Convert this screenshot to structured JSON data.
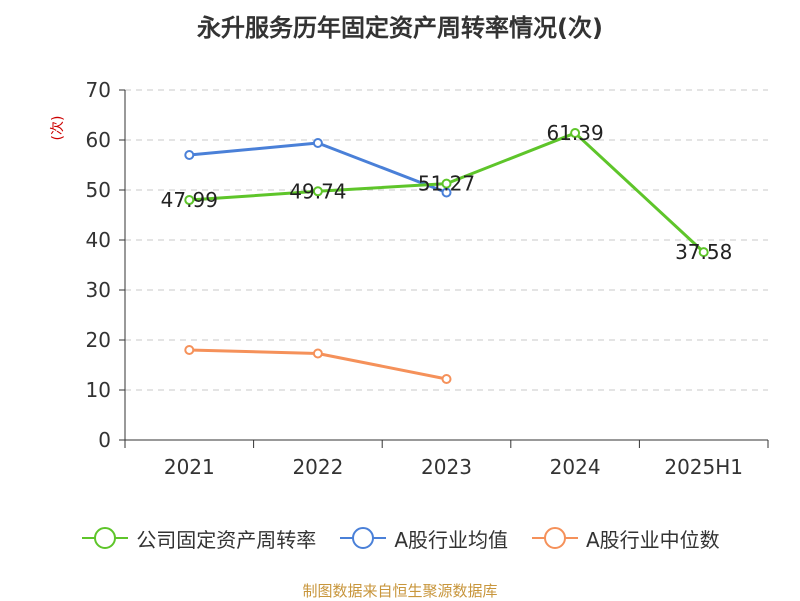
{
  "chart_data": {
    "type": "line",
    "title": "永升服务历年固定资产周转率情况(次)",
    "ylabel": "(次)",
    "xlabel": "",
    "categories": [
      "2021",
      "2022",
      "2023",
      "2024",
      "2025H1"
    ],
    "ylim": [
      0,
      70
    ],
    "yticks": [
      0,
      10,
      20,
      30,
      40,
      50,
      60,
      70
    ],
    "grid": true,
    "legend_position": "bottom",
    "series": [
      {
        "name": "公司固定资产周转率",
        "values": [
          47.99,
          49.74,
          51.27,
          61.39,
          37.58
        ],
        "labels": [
          "47.99",
          "49.74",
          "51.27",
          "61.39",
          "37.58"
        ],
        "color": "#5ec52a"
      },
      {
        "name": "A股行业均值",
        "values": [
          57.0,
          59.4,
          49.5,
          null,
          null
        ],
        "color": "#4a80d8"
      },
      {
        "name": "A股行业中位数",
        "values": [
          18.0,
          17.3,
          12.2,
          null,
          null
        ],
        "color": "#f5915a"
      }
    ]
  },
  "footer": {
    "source": "制图数据来自恒生聚源数据库"
  }
}
